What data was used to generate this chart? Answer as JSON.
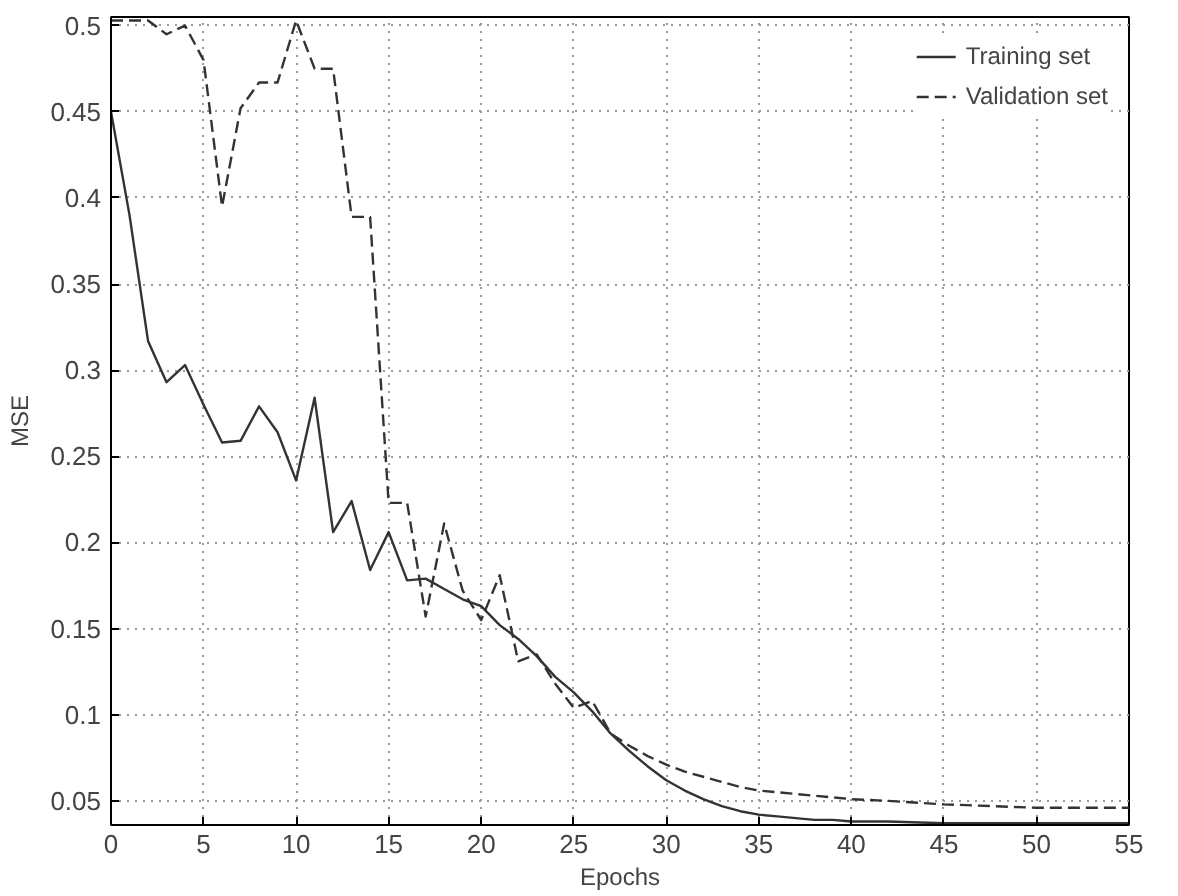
{
  "chart_data": {
    "type": "line",
    "xlabel": "Epochs",
    "ylabel": "MSE",
    "x": [
      0,
      1,
      2,
      3,
      4,
      5,
      6,
      7,
      8,
      9,
      10,
      11,
      12,
      13,
      14,
      15,
      16,
      17,
      18,
      19,
      20,
      21,
      22,
      23,
      24,
      25,
      26,
      27,
      28,
      29,
      30,
      31,
      32,
      33,
      34,
      35,
      36,
      37,
      38,
      39,
      40,
      42,
      45,
      50,
      55
    ],
    "series": [
      {
        "name": "Training set",
        "color": "#333333",
        "line_style": "solid",
        "values": [
          0.45,
          0.39,
          0.317,
          0.293,
          0.303,
          0.28,
          0.258,
          0.259,
          0.279,
          0.264,
          0.236,
          0.284,
          0.206,
          0.224,
          0.184,
          0.206,
          0.178,
          0.179,
          0.173,
          0.167,
          0.163,
          0.152,
          0.144,
          0.134,
          0.122,
          0.113,
          0.102,
          0.089,
          0.079,
          0.07,
          0.062,
          0.056,
          0.051,
          0.047,
          0.044,
          0.042,
          0.041,
          0.04,
          0.039,
          0.039,
          0.038,
          0.038,
          0.037,
          0.037,
          0.037
        ]
      },
      {
        "name": "Validation set",
        "color": "#333333",
        "line_style": "dashed",
        "values": [
          0.503,
          0.503,
          0.503,
          0.495,
          0.5,
          0.48,
          0.395,
          0.452,
          0.467,
          0.467,
          0.503,
          0.475,
          0.475,
          0.389,
          0.389,
          0.223,
          0.223,
          0.157,
          0.211,
          0.172,
          0.155,
          0.181,
          0.131,
          0.135,
          0.118,
          0.104,
          0.108,
          0.089,
          0.082,
          0.076,
          0.071,
          0.067,
          0.064,
          0.061,
          0.058,
          0.056,
          0.055,
          0.054,
          0.053,
          0.052,
          0.051,
          0.05,
          0.048,
          0.046,
          0.046
        ]
      }
    ],
    "xlim": [
      0,
      55
    ],
    "xticks": [
      0,
      5,
      10,
      15,
      20,
      25,
      30,
      35,
      40,
      45,
      50,
      55
    ],
    "ylim": [
      0.036,
      0.505
    ],
    "yticks": [
      0.05,
      0.1,
      0.15,
      0.2,
      0.25,
      0.3,
      0.35,
      0.4,
      0.45,
      0.5
    ],
    "grid": true,
    "legend": "top right"
  }
}
